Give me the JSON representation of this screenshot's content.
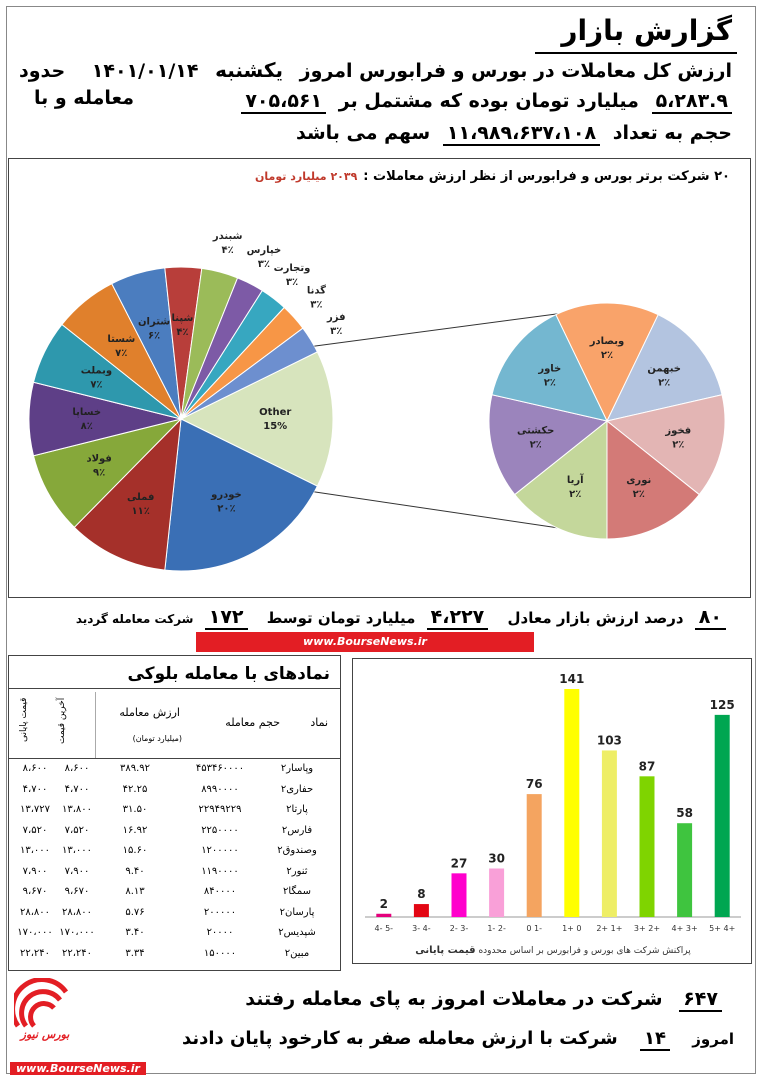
{
  "header": {
    "title": "گزارش بازار",
    "line1_pre": "ارزش کل  معاملات در بورس و فرابورس  امروز",
    "day": "یکشنبه",
    "date": "۱۴۰۱/۰۱/۱۴",
    "line1_post": "حدود",
    "value_total": "۵،۲۸۳.۹",
    "line2_mid": "میلیارد تومان بوده که مشتمل بر",
    "trades": "۷۰۵،۵۶۱",
    "line2_post": "معامله و با",
    "line3_pre": "حجم به تعداد",
    "volume": "۱۱،۹۸۹،۶۳۷،۱۰۸",
    "line3_post": "سهم  می باشد"
  },
  "pie": {
    "title": "۲۰ شرکت برتر بورس و فرابورس از نظر ارزش معاملات :",
    "subtitle": "۲۰۳۹ میلیارد تومان"
  },
  "chart_data": [
    {
      "type": "pie",
      "title": "۲۰ شرکت برتر بورس و فرابورس از نظر ارزش معاملات :",
      "subtitle": "۲۰۳۹ میلیارد تومان",
      "slices": [
        {
          "label": "Other",
          "pct_label": "15%",
          "value": 15,
          "color": "#d7e4bd"
        },
        {
          "label": "خودرو",
          "pct_label": "۲۰٪",
          "value": 20,
          "color": "#3a6fb5"
        },
        {
          "label": "فملی",
          "pct_label": "۱۱٪",
          "value": 11,
          "color": "#a5302a"
        },
        {
          "label": "فولاد",
          "pct_label": "۹٪",
          "value": 9,
          "color": "#86a83a"
        },
        {
          "label": "خساپا",
          "pct_label": "۸٪",
          "value": 8,
          "color": "#5e3f87"
        },
        {
          "label": "وبملت",
          "pct_label": "۷٪",
          "value": 7,
          "color": "#2e98ad"
        },
        {
          "label": "شستا",
          "pct_label": "۷٪",
          "value": 7,
          "color": "#e0802c"
        },
        {
          "label": "شتران",
          "pct_label": "۶٪",
          "value": 6,
          "color": "#4b7dbf"
        },
        {
          "label": "شپنا",
          "pct_label": "۴٪",
          "value": 4,
          "color": "#b83e3a"
        },
        {
          "label": "شبندر",
          "pct_label": "۴٪",
          "value": 4,
          "color": "#9bbb59"
        },
        {
          "label": "خپارس",
          "pct_label": "۳٪",
          "value": 3,
          "color": "#7d5aa6"
        },
        {
          "label": "وتجارت",
          "pct_label": "۳٪",
          "value": 3,
          "color": "#37a7c0"
        },
        {
          "label": "گدنا",
          "pct_label": "۳٪",
          "value": 3,
          "color": "#f79646"
        },
        {
          "label": "فزر",
          "pct_label": "۳٪",
          "value": 3,
          "color": "#6d8fcf"
        }
      ],
      "sub_pie": [
        {
          "label": "وبصادر",
          "pct_label": "۲٪",
          "value": 2,
          "color": "#f9a36a"
        },
        {
          "label": "خبهمن",
          "pct_label": "۲٪",
          "value": 2,
          "color": "#b3c4e0"
        },
        {
          "label": "فخوز",
          "pct_label": "۲٪",
          "value": 2,
          "color": "#e3b5b4"
        },
        {
          "label": "نوری",
          "pct_label": "۲٪",
          "value": 2,
          "color": "#d37a77"
        },
        {
          "label": "آریا",
          "pct_label": "۲٪",
          "value": 2,
          "color": "#c4d79b"
        },
        {
          "label": "حکشتی",
          "pct_label": "۲٪",
          "value": 2,
          "color": "#9b84bc"
        },
        {
          "label": "خاور",
          "pct_label": "۲٪",
          "value": 2,
          "color": "#74b7d0"
        }
      ]
    },
    {
      "type": "bar",
      "title": "پراکنش شرکت های بورس و فرابورس  بر اساس  محدوده",
      "title_bold": "قیمت پایانی",
      "categories": [
        "-5 -4",
        "-4 -3",
        "-3 -2",
        "-2 -1",
        "-1 0",
        "0 +1",
        "+1 +2",
        "+2 +3",
        "+3 +4",
        "+4 +5"
      ],
      "values": [
        2,
        8,
        27,
        30,
        76,
        141,
        103,
        87,
        58,
        125
      ],
      "colors": [
        "#e4007c",
        "#e30613",
        "#ff00cc",
        "#f9a0d8",
        "#f4a460",
        "#ffff00",
        "#eeee66",
        "#7fd400",
        "#3fc43f",
        "#00a651"
      ],
      "ylim": [
        0,
        141
      ]
    }
  ],
  "summary": {
    "pct": "۸۰",
    "pct_label": "درصد ارزش بازار معادل",
    "value": "۴،۲۲۷",
    "value_label": "میلیارد تومان توسط",
    "companies": "۱۷۲",
    "companies_label": "شرکت معامله گردید"
  },
  "brand": {
    "url": "www.BourseNews.ir",
    "logo_text": "بورس نیوز",
    "accent": "#e31e24"
  },
  "block_table": {
    "title": "نمادهای با معامله بلوکی",
    "headers": {
      "symbol": "نماد",
      "volume": "حجم معامله",
      "value": "ارزش معامله",
      "value_unit": "(میلیارد تومان)",
      "last": "آخرین قیمت",
      "close": "قیمت پایانی"
    },
    "rows": [
      {
        "symbol": "وپاسار۲",
        "volume": "۴۵۳۴۶۰۰۰۰",
        "value": "۳۸۹.۹۲",
        "last": "۸،۶۰۰",
        "close": "۸،۶۰۰"
      },
      {
        "symbol": "حفاری۲",
        "volume": "۸۹۹۰۰۰۰",
        "value": "۴۲.۲۵",
        "last": "۴،۷۰۰",
        "close": "۴،۷۰۰"
      },
      {
        "symbol": "پارتا۲",
        "volume": "۲۲۹۴۹۲۲۹",
        "value": "۳۱.۵۰",
        "last": "۱۳،۸۰۰",
        "close": "۱۳،۷۲۷"
      },
      {
        "symbol": "فارس۲",
        "volume": "۲۲۵۰۰۰۰",
        "value": "۱۶.۹۲",
        "last": "۷،۵۲۰",
        "close": "۷،۵۲۰"
      },
      {
        "symbol": "وصندوق۲",
        "volume": "۱۲۰۰۰۰۰",
        "value": "۱۵.۶۰",
        "last": "۱۳،۰۰۰",
        "close": "۱۳،۰۰۰"
      },
      {
        "symbol": "ثنور۲",
        "volume": "۱۱۹۰۰۰۰",
        "value": "۹.۴۰",
        "last": "۷،۹۰۰",
        "close": "۷،۹۰۰"
      },
      {
        "symbol": "سمگا۲",
        "volume": "۸۴۰۰۰۰",
        "value": "۸.۱۳",
        "last": "۹،۶۷۰",
        "close": "۹،۶۷۰"
      },
      {
        "symbol": "پارسان۲",
        "volume": "۲۰۰۰۰۰",
        "value": "۵.۷۶",
        "last": "۲۸،۸۰۰",
        "close": "۲۸،۸۰۰"
      },
      {
        "symbol": "شپدیس۲",
        "volume": "۲۰۰۰۰",
        "value": "۳.۴۰",
        "last": "۱۷۰،۰۰۰",
        "close": "۱۷۰،۰۰۰"
      },
      {
        "symbol": "مبین۲",
        "volume": "۱۵۰۰۰۰",
        "value": "۳.۳۴",
        "last": "۲۲،۲۴۰",
        "close": "۲۲،۲۴۰"
      }
    ]
  },
  "footer": {
    "went_count": "۶۴۷",
    "went_label": "شرکت در معاملات امروز به پای معامله رفتند",
    "today": "امروز",
    "zero_count": "۱۴",
    "zero_label": "شرکت با ارزش معامله صفر به کارخود  پایان دادند"
  }
}
